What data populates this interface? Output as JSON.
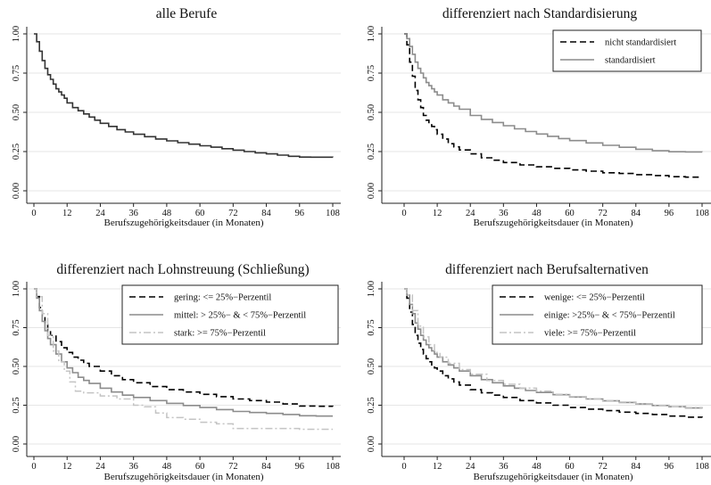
{
  "colors": {
    "dark": "#333333",
    "dashed_black": "#000000",
    "solid_gray": "#8c8c8c",
    "light_dashdot": "#c4c4c4",
    "grid": "#e6e6e6"
  },
  "chart_data": [
    {
      "type": "line",
      "step": true,
      "title": "alle Berufe",
      "xlabel": "Berufszugehörigkeitsdauer (in Monaten)",
      "ylabel": "",
      "xlim": [
        0,
        108
      ],
      "ylim": [
        0,
        1
      ],
      "xticks": [
        "0",
        "12",
        "24",
        "36",
        "48",
        "60",
        "72",
        "84",
        "96",
        "108"
      ],
      "yticks": [
        "0.00",
        "0.25",
        "0.50",
        "0.75",
        "1.00"
      ],
      "grid": true,
      "legend": null,
      "series": [
        {
          "name": "",
          "style": "solid-dark",
          "x": [
            0,
            1,
            2,
            3,
            4,
            5,
            6,
            7,
            8,
            9,
            10,
            11,
            12,
            14,
            16,
            18,
            20,
            22,
            24,
            27,
            30,
            33,
            36,
            40,
            44,
            48,
            52,
            56,
            60,
            64,
            68,
            72,
            76,
            80,
            84,
            88,
            92,
            96,
            100,
            104,
            108
          ],
          "y": [
            1.0,
            0.95,
            0.89,
            0.83,
            0.78,
            0.74,
            0.71,
            0.68,
            0.65,
            0.63,
            0.61,
            0.59,
            0.56,
            0.53,
            0.51,
            0.49,
            0.47,
            0.45,
            0.43,
            0.41,
            0.39,
            0.375,
            0.36,
            0.345,
            0.33,
            0.318,
            0.307,
            0.297,
            0.287,
            0.278,
            0.268,
            0.259,
            0.25,
            0.242,
            0.235,
            0.227,
            0.22,
            0.215,
            0.214,
            0.214,
            0.213
          ]
        }
      ]
    },
    {
      "type": "line",
      "step": true,
      "title": "differenziert nach Standardisierung",
      "xlabel": "Berufszugehörigkeitsdauer (in Monaten)",
      "ylabel": "",
      "xlim": [
        0,
        108
      ],
      "ylim": [
        0,
        1
      ],
      "xticks": [
        "0",
        "12",
        "24",
        "36",
        "48",
        "60",
        "72",
        "84",
        "96",
        "108"
      ],
      "yticks": [
        "0.00",
        "0.25",
        "0.50",
        "0.75",
        "1.00"
      ],
      "grid": true,
      "legend": "top-right",
      "series": [
        {
          "name": "nicht standardisiert",
          "style": "dashed-black",
          "x": [
            0,
            1,
            2,
            3,
            4,
            5,
            6,
            7,
            8,
            9,
            10,
            11,
            12,
            14,
            16,
            18,
            20,
            24,
            28,
            32,
            36,
            42,
            48,
            54,
            60,
            66,
            72,
            78,
            84,
            90,
            96,
            102,
            108
          ],
          "y": [
            1.0,
            0.93,
            0.82,
            0.73,
            0.64,
            0.58,
            0.53,
            0.48,
            0.45,
            0.43,
            0.41,
            0.39,
            0.36,
            0.33,
            0.3,
            0.28,
            0.26,
            0.235,
            0.21,
            0.195,
            0.18,
            0.165,
            0.153,
            0.143,
            0.133,
            0.125,
            0.115,
            0.11,
            0.103,
            0.097,
            0.09,
            0.087,
            0.085
          ]
        },
        {
          "name": "standardisiert",
          "style": "solid-gray",
          "x": [
            0,
            1,
            2,
            3,
            4,
            5,
            6,
            7,
            8,
            9,
            10,
            11,
            12,
            14,
            16,
            18,
            20,
            24,
            28,
            32,
            36,
            40,
            44,
            48,
            52,
            56,
            60,
            66,
            72,
            78,
            84,
            90,
            96,
            102,
            108
          ],
          "y": [
            1.0,
            0.97,
            0.92,
            0.87,
            0.82,
            0.78,
            0.75,
            0.72,
            0.69,
            0.67,
            0.65,
            0.63,
            0.61,
            0.58,
            0.56,
            0.54,
            0.52,
            0.48,
            0.455,
            0.435,
            0.415,
            0.395,
            0.378,
            0.362,
            0.347,
            0.333,
            0.32,
            0.305,
            0.29,
            0.277,
            0.265,
            0.255,
            0.249,
            0.248,
            0.247
          ]
        }
      ]
    },
    {
      "type": "line",
      "step": true,
      "title": "differenziert nach Lohnstreuung (Schließung)",
      "xlabel": "Berufszugehörigkeitsdauer (in Monaten)",
      "ylabel": "",
      "xlim": [
        0,
        108
      ],
      "ylim": [
        0,
        1
      ],
      "xticks": [
        "0",
        "12",
        "24",
        "36",
        "48",
        "60",
        "72",
        "84",
        "96",
        "108"
      ],
      "yticks": [
        "0.00",
        "0.25",
        "0.50",
        "0.75",
        "1.00"
      ],
      "grid": true,
      "legend": "top-right",
      "series": [
        {
          "name": "gering: <= 25%−Perzentil",
          "style": "dashed-black",
          "x": [
            0,
            1,
            2,
            3,
            4,
            5,
            6,
            8,
            10,
            12,
            14,
            16,
            18,
            20,
            24,
            28,
            32,
            36,
            42,
            48,
            54,
            60,
            66,
            72,
            78,
            84,
            90,
            96,
            102,
            108
          ],
          "y": [
            1.0,
            0.95,
            0.88,
            0.82,
            0.77,
            0.73,
            0.7,
            0.66,
            0.62,
            0.59,
            0.56,
            0.54,
            0.52,
            0.5,
            0.47,
            0.44,
            0.415,
            0.395,
            0.37,
            0.35,
            0.335,
            0.32,
            0.305,
            0.29,
            0.28,
            0.27,
            0.258,
            0.245,
            0.243,
            0.242
          ]
        },
        {
          "name": "mittel: > 25%− & < 75%−Perzentil",
          "style": "solid-gray",
          "x": [
            0,
            1,
            2,
            3,
            4,
            5,
            6,
            8,
            10,
            12,
            14,
            16,
            18,
            20,
            24,
            28,
            32,
            36,
            42,
            48,
            54,
            60,
            66,
            72,
            78,
            84,
            90,
            96,
            102,
            108
          ],
          "y": [
            1.0,
            0.94,
            0.86,
            0.79,
            0.73,
            0.68,
            0.64,
            0.58,
            0.53,
            0.49,
            0.46,
            0.43,
            0.41,
            0.39,
            0.36,
            0.335,
            0.315,
            0.3,
            0.28,
            0.262,
            0.248,
            0.235,
            0.222,
            0.21,
            0.203,
            0.197,
            0.19,
            0.182,
            0.18,
            0.18
          ]
        },
        {
          "name": "stark: >= 75%−Perzentil",
          "style": "dashdot-light",
          "x": [
            0,
            1,
            3,
            5,
            7,
            9,
            11,
            13,
            15,
            18,
            24,
            30,
            36,
            40,
            44,
            48,
            54,
            60,
            66,
            72,
            84,
            96,
            108
          ],
          "y": [
            1.0,
            0.95,
            0.84,
            0.7,
            0.6,
            0.53,
            0.47,
            0.4,
            0.34,
            0.33,
            0.31,
            0.29,
            0.25,
            0.24,
            0.2,
            0.17,
            0.16,
            0.14,
            0.13,
            0.1,
            0.1,
            0.095,
            0.095
          ]
        }
      ]
    },
    {
      "type": "line",
      "step": true,
      "title": "differenziert nach Berufsalternativen",
      "xlabel": "Berufszugehörigkeitsdauer (in Monaten)",
      "ylabel": "",
      "xlim": [
        0,
        108
      ],
      "ylim": [
        0,
        1
      ],
      "xticks": [
        "0",
        "12",
        "24",
        "36",
        "48",
        "60",
        "72",
        "84",
        "96",
        "108"
      ],
      "yticks": [
        "0.00",
        "0.25",
        "0.50",
        "0.75",
        "1.00"
      ],
      "grid": true,
      "legend": "top-right",
      "series": [
        {
          "name": "wenige: <= 25%−Perzentil",
          "style": "dashed-black",
          "x": [
            0,
            1,
            2,
            3,
            4,
            5,
            6,
            7,
            8,
            9,
            10,
            11,
            12,
            14,
            16,
            18,
            20,
            24,
            28,
            32,
            36,
            42,
            48,
            54,
            60,
            66,
            72,
            78,
            84,
            90,
            96,
            102,
            108
          ],
          "y": [
            1.0,
            0.94,
            0.85,
            0.77,
            0.7,
            0.65,
            0.61,
            0.58,
            0.55,
            0.53,
            0.51,
            0.49,
            0.47,
            0.44,
            0.42,
            0.4,
            0.38,
            0.35,
            0.33,
            0.315,
            0.3,
            0.28,
            0.265,
            0.25,
            0.235,
            0.225,
            0.215,
            0.205,
            0.197,
            0.19,
            0.18,
            0.173,
            0.17
          ]
        },
        {
          "name": "einige: >25%− & < 75%−Perzentil",
          "style": "solid-gray",
          "x": [
            0,
            1,
            2,
            3,
            4,
            5,
            6,
            7,
            8,
            9,
            10,
            11,
            12,
            14,
            16,
            18,
            20,
            24,
            28,
            32,
            36,
            40,
            44,
            48,
            54,
            60,
            66,
            72,
            78,
            84,
            90,
            96,
            102,
            108
          ],
          "y": [
            1.0,
            0.96,
            0.9,
            0.84,
            0.78,
            0.74,
            0.7,
            0.67,
            0.64,
            0.62,
            0.6,
            0.58,
            0.56,
            0.53,
            0.51,
            0.49,
            0.47,
            0.44,
            0.415,
            0.395,
            0.375,
            0.36,
            0.345,
            0.332,
            0.318,
            0.303,
            0.29,
            0.278,
            0.268,
            0.258,
            0.248,
            0.24,
            0.232,
            0.228
          ]
        },
        {
          "name": "viele: >= 75%−Perzentil",
          "style": "dashdot-light",
          "x": [
            0,
            1,
            3,
            5,
            7,
            9,
            11,
            13,
            16,
            20,
            24,
            30,
            36,
            42,
            48,
            54,
            60,
            66,
            72,
            78,
            84,
            90,
            96,
            102,
            108
          ],
          "y": [
            1.0,
            0.96,
            0.86,
            0.76,
            0.69,
            0.64,
            0.59,
            0.56,
            0.52,
            0.48,
            0.45,
            0.41,
            0.385,
            0.36,
            0.34,
            0.32,
            0.305,
            0.29,
            0.28,
            0.27,
            0.26,
            0.25,
            0.24,
            0.235,
            0.23
          ]
        }
      ]
    }
  ]
}
